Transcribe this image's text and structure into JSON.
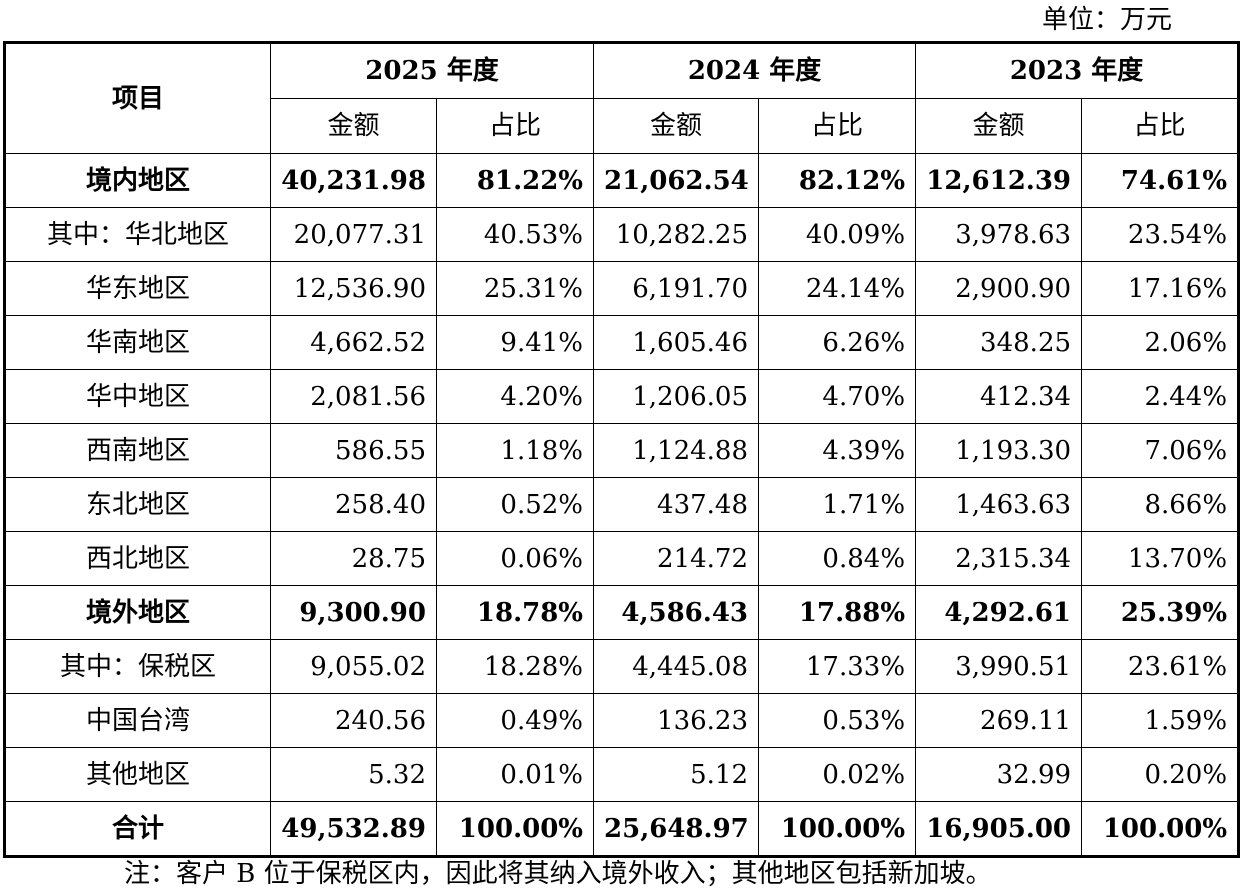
{
  "unit_label": "单位：万元",
  "header": {
    "item": "项目",
    "years": [
      "2025 年度",
      "2024 年度",
      "2023 年度"
    ],
    "amount": "金额",
    "share": "占比"
  },
  "rows": [
    {
      "label": "境内地区",
      "bold": true,
      "v": [
        "40,231.98",
        "81.22%",
        "21,062.54",
        "82.12%",
        "12,612.39",
        "74.61%"
      ]
    },
    {
      "label": "其中：华北地区",
      "bold": false,
      "v": [
        "20,077.31",
        "40.53%",
        "10,282.25",
        "40.09%",
        "3,978.63",
        "23.54%"
      ]
    },
    {
      "label": "华东地区",
      "bold": false,
      "v": [
        "12,536.90",
        "25.31%",
        "6,191.70",
        "24.14%",
        "2,900.90",
        "17.16%"
      ]
    },
    {
      "label": "华南地区",
      "bold": false,
      "v": [
        "4,662.52",
        "9.41%",
        "1,605.46",
        "6.26%",
        "348.25",
        "2.06%"
      ]
    },
    {
      "label": "华中地区",
      "bold": false,
      "v": [
        "2,081.56",
        "4.20%",
        "1,206.05",
        "4.70%",
        "412.34",
        "2.44%"
      ]
    },
    {
      "label": "西南地区",
      "bold": false,
      "v": [
        "586.55",
        "1.18%",
        "1,124.88",
        "4.39%",
        "1,193.30",
        "7.06%"
      ]
    },
    {
      "label": "东北地区",
      "bold": false,
      "v": [
        "258.40",
        "0.52%",
        "437.48",
        "1.71%",
        "1,463.63",
        "8.66%"
      ]
    },
    {
      "label": "西北地区",
      "bold": false,
      "v": [
        "28.75",
        "0.06%",
        "214.72",
        "0.84%",
        "2,315.34",
        "13.70%"
      ]
    },
    {
      "label": "境外地区",
      "bold": true,
      "v": [
        "9,300.90",
        "18.78%",
        "4,586.43",
        "17.88%",
        "4,292.61",
        "25.39%"
      ]
    },
    {
      "label": "其中：保税区",
      "bold": false,
      "v": [
        "9,055.02",
        "18.28%",
        "4,445.08",
        "17.33%",
        "3,990.51",
        "23.61%"
      ]
    },
    {
      "label": "中国台湾",
      "bold": false,
      "v": [
        "240.56",
        "0.49%",
        "136.23",
        "0.53%",
        "269.11",
        "1.59%"
      ]
    },
    {
      "label": "其他地区",
      "bold": false,
      "v": [
        "5.32",
        "0.01%",
        "5.12",
        "0.02%",
        "32.99",
        "0.20%"
      ]
    },
    {
      "label": "合计",
      "bold": true,
      "v": [
        "49,532.89",
        "100.00%",
        "25,648.97",
        "100.00%",
        "16,905.00",
        "100.00%"
      ]
    }
  ],
  "note": "注：客户 B 位于保税区内，因此将其纳入境外收入；其他地区包括新加坡。"
}
